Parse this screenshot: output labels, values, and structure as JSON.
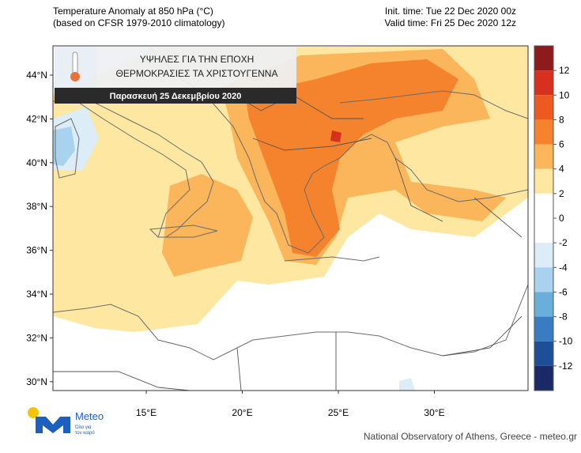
{
  "header": {
    "title": "Temperature Anomaly at 850 hPa (°C)",
    "subtitle": "(based on CFSR 1979-2010 climatology)",
    "init_time": "Init. time: Tue 22 Dec 2020 00z",
    "valid_time": "Valid time: Fri 25 Dec 2020 12z"
  },
  "banner": {
    "line1": "ΥΨΗΛΕΣ ΓΙΑ ΤΗΝ ΕΠΟΧΗ",
    "line2": "ΘΕΡΜΟΚΡΑΣΙΕΣ ΤΑ ΧΡΙΣΤΟΥΓΕΝΝΑ",
    "date": "Παρασκευή 25 Δεκεμβρίου 2020"
  },
  "map": {
    "lat_labels": [
      "44°N",
      "42°N",
      "40°N",
      "38°N",
      "36°N",
      "34°N",
      "32°N",
      "30°N"
    ],
    "lon_labels": [
      "15°E",
      "20°E",
      "25°E",
      "30°E"
    ]
  },
  "colorbar": {
    "ticks": [
      12,
      10,
      8,
      6,
      4,
      2,
      0,
      -2,
      -4,
      -6,
      -8,
      -10,
      -12
    ],
    "colors": [
      "#8e1b1b",
      "#d7301f",
      "#ec5a22",
      "#f5832e",
      "#fbb55a",
      "#fde7a1",
      "#ffffff",
      "#ffffff",
      "#dcedf8",
      "#a8d2ee",
      "#6aaedc",
      "#3a7cc2",
      "#1f4e98",
      "#1a2a66"
    ]
  },
  "logo": {
    "name": "Meteo",
    "tagline1": "Όλα για",
    "tagline2": "τον καιρό"
  },
  "footer": {
    "credit": "National Observatory of Athens, Greece - meteo.gr"
  }
}
